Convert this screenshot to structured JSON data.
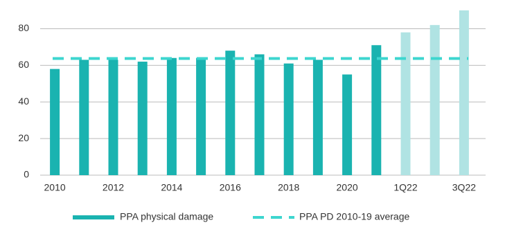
{
  "chart_data": {
    "type": "bar",
    "categories": [
      "2010",
      null,
      "2012",
      null,
      "2014",
      null,
      "2016",
      null,
      "2018",
      null,
      "2020",
      null,
      "1Q22",
      null,
      "3Q22"
    ],
    "series": [
      {
        "name": "PPA physical damage",
        "color": "#1ab3b0",
        "colors": [
          "#1ab3b0",
          "#1ab3b0",
          "#1ab3b0",
          "#1ab3b0",
          "#1ab3b0",
          "#1ab3b0",
          "#1ab3b0",
          "#1ab3b0",
          "#1ab3b0",
          "#1ab3b0",
          "#1ab3b0",
          "#1ab3b0",
          "#b0e3e3",
          "#b0e3e3",
          "#b0e3e3"
        ],
        "values": [
          58,
          63,
          63,
          62,
          64,
          64,
          68,
          66,
          61,
          63,
          55,
          71,
          78,
          82,
          90
        ]
      }
    ],
    "reference_line": {
      "name": "PPA PD 2010-19 average",
      "value": 63.7,
      "color": "#3dd6cf"
    },
    "ylim": [
      0,
      90
    ],
    "yticks": [
      0,
      20,
      40,
      60,
      80
    ],
    "grid": true
  }
}
